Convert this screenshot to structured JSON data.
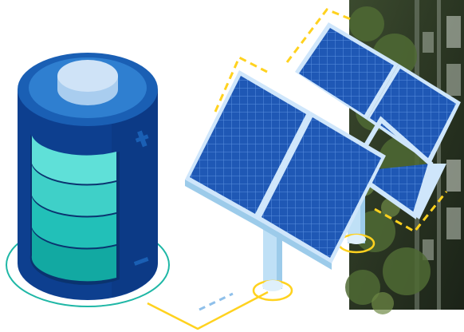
{
  "colors": {
    "background": "#ffffff",
    "battery_dark": "#0d3f8f",
    "battery_mid": "#1a5fb4",
    "battery_top": "#2f7fd0",
    "battery_cap": "#cfe3f7",
    "cell_1": "#5fe0d8",
    "cell_2": "#3fd0c8",
    "cell_3": "#22c0b8",
    "cell_4": "#12a9a2",
    "teal_ring": "#1fb7a6",
    "panel_blue": "#1f58b5",
    "panel_grid": "#5a8fe0",
    "panel_frame": "#cfe6fb",
    "pole": "#bfe0f6",
    "connector_yellow": "#ffd21f",
    "dash_blue": "#8fc0ea"
  },
  "icons": {
    "battery": "battery-icon",
    "plus": "plus-icon",
    "minus": "minus-icon",
    "solar_panels": "solar-panel-icon",
    "photo": "building-facade-photo"
  }
}
